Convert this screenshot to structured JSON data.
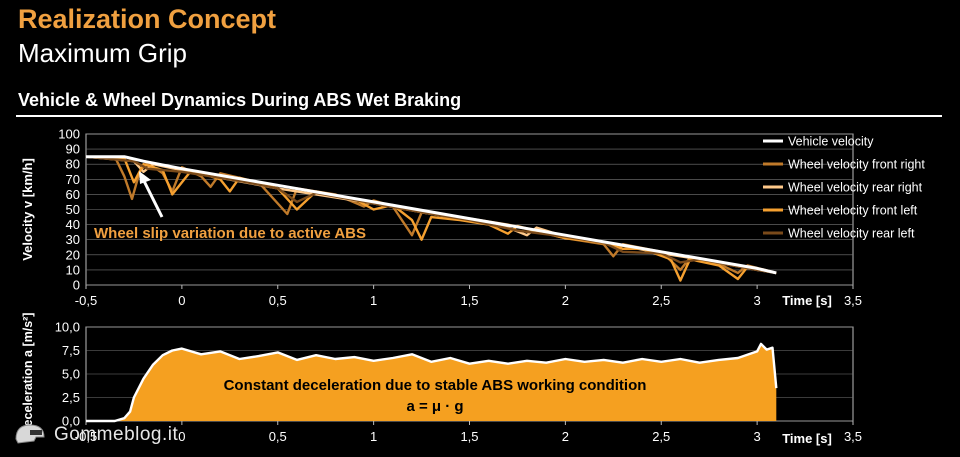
{
  "page": {
    "title": "Realization Concept",
    "subtitle": "Maximum Grip",
    "section_title": "Vehicle & Wheel Dynamics During ABS Wet Braking",
    "watermark": "Gommeblog.it"
  },
  "colors": {
    "accent": "#f0a040",
    "vehicle": "#ffffff",
    "front_right": "#c07a2a",
    "rear_right": "#ffc98a",
    "front_left": "#f5a030",
    "rear_left": "#7a4a1a",
    "decel_fill": "#f5a020",
    "background": "#000000"
  },
  "chart_data": [
    {
      "type": "line",
      "ylabel": "Velocity v [km/h]",
      "xlabel": "Time [s]",
      "xlim": [
        -0.5,
        3.5
      ],
      "ylim": [
        0,
        100
      ],
      "x_ticks": [
        "-0,5",
        "0",
        "0,5",
        "1",
        "1,5",
        "2",
        "2,5",
        "3",
        "3,5"
      ],
      "y_ticks": [
        "0",
        "10",
        "20",
        "30",
        "40",
        "50",
        "60",
        "70",
        "80",
        "90",
        "100"
      ],
      "grid": true,
      "legend_position": "right",
      "annotation": "Wheel slip variation due to active ABS",
      "series": [
        {
          "name": "Vehicle velocity",
          "color_key": "vehicle",
          "points": [
            [
              -0.5,
              85
            ],
            [
              -0.3,
              85
            ],
            [
              -0.2,
              82
            ],
            [
              0,
              77
            ],
            [
              0.5,
              66
            ],
            [
              1,
              55
            ],
            [
              1.5,
              44
            ],
            [
              2,
              33
            ],
            [
              2.5,
              22
            ],
            [
              3,
              11
            ],
            [
              3.1,
              8
            ]
          ]
        },
        {
          "name": "Wheel velocity front right",
          "color_key": "front_right",
          "points": [
            [
              -0.5,
              85
            ],
            [
              -0.35,
              85
            ],
            [
              -0.3,
              72
            ],
            [
              -0.26,
              57
            ],
            [
              -0.22,
              75
            ],
            [
              -0.18,
              81
            ],
            [
              -0.1,
              74
            ],
            [
              -0.05,
              62
            ],
            [
              0,
              78
            ],
            [
              0.1,
              72
            ],
            [
              0.15,
              65
            ],
            [
              0.2,
              74
            ],
            [
              0.3,
              71
            ],
            [
              0.4,
              68
            ],
            [
              0.55,
              47
            ],
            [
              0.6,
              64
            ],
            [
              0.8,
              60
            ],
            [
              0.95,
              52
            ],
            [
              1.0,
              56
            ],
            [
              1.1,
              52
            ],
            [
              1.2,
              33
            ],
            [
              1.25,
              48
            ],
            [
              1.4,
              46
            ],
            [
              1.5,
              44
            ],
            [
              1.7,
              40
            ],
            [
              1.8,
              37
            ],
            [
              2.0,
              31
            ],
            [
              2.2,
              27
            ],
            [
              2.25,
              19
            ],
            [
              2.3,
              27
            ],
            [
              2.5,
              22
            ],
            [
              2.6,
              10
            ],
            [
              2.65,
              18
            ],
            [
              2.8,
              14
            ],
            [
              2.9,
              8
            ],
            [
              2.95,
              13
            ],
            [
              3.1,
              8
            ]
          ]
        },
        {
          "name": "Wheel velocity rear right",
          "color_key": "rear_right",
          "points": [
            [
              -0.5,
              85
            ],
            [
              -0.25,
              82
            ],
            [
              -0.2,
              75
            ],
            [
              -0.15,
              80
            ],
            [
              0,
              76
            ],
            [
              0.2,
              71
            ],
            [
              0.5,
              64
            ],
            [
              0.7,
              60
            ],
            [
              1,
              54
            ],
            [
              1.3,
              47
            ],
            [
              1.5,
              43
            ],
            [
              1.7,
              38
            ],
            [
              1.8,
              33
            ],
            [
              1.85,
              38
            ],
            [
              2,
              32
            ],
            [
              2.3,
              26
            ],
            [
              2.5,
              21
            ],
            [
              2.7,
              17
            ],
            [
              3,
              10
            ],
            [
              3.1,
              8
            ]
          ]
        },
        {
          "name": "Wheel velocity front left",
          "color_key": "front_left",
          "points": [
            [
              -0.5,
              85
            ],
            [
              -0.3,
              84
            ],
            [
              -0.25,
              68
            ],
            [
              -0.2,
              80
            ],
            [
              -0.1,
              76
            ],
            [
              -0.05,
              60
            ],
            [
              0.05,
              76
            ],
            [
              0.2,
              70
            ],
            [
              0.25,
              62
            ],
            [
              0.3,
              71
            ],
            [
              0.5,
              64
            ],
            [
              0.6,
              50
            ],
            [
              0.7,
              62
            ],
            [
              0.9,
              57
            ],
            [
              1.0,
              50
            ],
            [
              1.1,
              53
            ],
            [
              1.2,
              43
            ],
            [
              1.25,
              30
            ],
            [
              1.3,
              45
            ],
            [
              1.45,
              43
            ],
            [
              1.6,
              40
            ],
            [
              1.7,
              34
            ],
            [
              1.75,
              39
            ],
            [
              2,
              31
            ],
            [
              2.2,
              28
            ],
            [
              2.3,
              24
            ],
            [
              2.4,
              24
            ],
            [
              2.55,
              17
            ],
            [
              2.6,
              3
            ],
            [
              2.65,
              17
            ],
            [
              2.8,
              13
            ],
            [
              2.9,
              4
            ],
            [
              2.95,
              12
            ],
            [
              3.1,
              8
            ]
          ]
        },
        {
          "name": "Wheel velocity rear left",
          "color_key": "rear_left",
          "points": [
            [
              -0.5,
              85
            ],
            [
              -0.25,
              82
            ],
            [
              -0.18,
              77
            ],
            [
              0,
              75
            ],
            [
              0.3,
              69
            ],
            [
              0.5,
              64
            ],
            [
              0.6,
              55
            ],
            [
              0.7,
              61
            ],
            [
              1,
              54
            ],
            [
              1.3,
              47
            ],
            [
              1.5,
              43
            ],
            [
              1.75,
              36
            ],
            [
              2,
              32
            ],
            [
              2.2,
              28
            ],
            [
              2.3,
              22
            ],
            [
              2.5,
              21
            ],
            [
              2.6,
              15
            ],
            [
              2.7,
              17
            ],
            [
              3,
              10
            ],
            [
              3.1,
              8
            ]
          ]
        }
      ]
    },
    {
      "type": "area",
      "ylabel": "Deceleration a [m/s²]",
      "xlabel": "Time [s]",
      "xlim": [
        -0.5,
        3.5
      ],
      "ylim": [
        0,
        10
      ],
      "x_ticks": [
        "-0,5",
        "0",
        "0,5",
        "1",
        "1,5",
        "2",
        "2,5",
        "3",
        "3,5"
      ],
      "y_ticks": [
        "0,0",
        "2,5",
        "5,0",
        "7,5",
        "10,0"
      ],
      "grid": true,
      "annotation_line1": "Constant deceleration due to stable ABS working condition",
      "annotation_line2": "a = μ · g",
      "points": [
        [
          -0.5,
          0
        ],
        [
          -0.35,
          0
        ],
        [
          -0.3,
          0.3
        ],
        [
          -0.27,
          1.0
        ],
        [
          -0.25,
          2.5
        ],
        [
          -0.2,
          4.5
        ],
        [
          -0.15,
          6.0
        ],
        [
          -0.1,
          7.0
        ],
        [
          -0.05,
          7.5
        ],
        [
          0,
          7.7
        ],
        [
          0.1,
          7.1
        ],
        [
          0.2,
          7.4
        ],
        [
          0.3,
          6.6
        ],
        [
          0.4,
          6.9
        ],
        [
          0.5,
          7.3
        ],
        [
          0.6,
          6.5
        ],
        [
          0.7,
          7.0
        ],
        [
          0.8,
          6.6
        ],
        [
          0.9,
          6.8
        ],
        [
          1.0,
          6.4
        ],
        [
          1.1,
          6.7
        ],
        [
          1.2,
          7.1
        ],
        [
          1.3,
          6.3
        ],
        [
          1.4,
          6.7
        ],
        [
          1.5,
          6.1
        ],
        [
          1.6,
          6.4
        ],
        [
          1.7,
          6.1
        ],
        [
          1.8,
          6.4
        ],
        [
          1.9,
          6.2
        ],
        [
          2.0,
          6.6
        ],
        [
          2.1,
          6.3
        ],
        [
          2.2,
          6.5
        ],
        [
          2.3,
          6.2
        ],
        [
          2.4,
          6.6
        ],
        [
          2.5,
          6.3
        ],
        [
          2.6,
          6.6
        ],
        [
          2.7,
          6.2
        ],
        [
          2.8,
          6.5
        ],
        [
          2.9,
          6.7
        ],
        [
          3.0,
          7.4
        ],
        [
          3.02,
          8.2
        ],
        [
          3.05,
          7.6
        ],
        [
          3.08,
          7.8
        ],
        [
          3.1,
          3.5
        ]
      ]
    }
  ]
}
